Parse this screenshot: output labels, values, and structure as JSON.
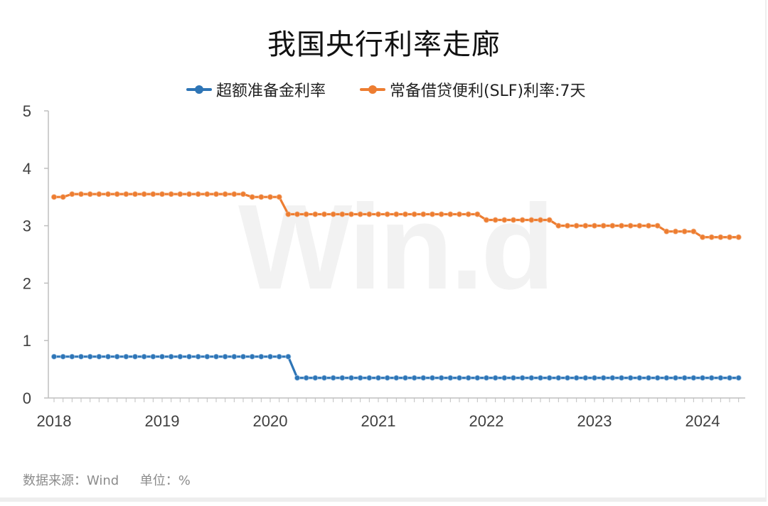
{
  "chart_data": {
    "type": "line",
    "title": "我国央行利率走廊",
    "xlabel": "",
    "ylabel": "",
    "x_ticks": [
      "2018",
      "2019",
      "2020",
      "2021",
      "2022",
      "2023",
      "2024"
    ],
    "y_ticks": [
      "0",
      "1",
      "2",
      "3",
      "4",
      "5"
    ],
    "ylim": [
      0,
      5
    ],
    "xlim": [
      "2018-01",
      "2024-05"
    ],
    "grid": false,
    "legend_position": "top",
    "series": [
      {
        "name": "超额准备金利率",
        "color": "#2e75b6",
        "x": [
          "2018-01",
          "2018-02",
          "2018-03",
          "2018-04",
          "2018-05",
          "2018-06",
          "2018-07",
          "2018-08",
          "2018-09",
          "2018-10",
          "2018-11",
          "2018-12",
          "2019-01",
          "2019-02",
          "2019-03",
          "2019-04",
          "2019-05",
          "2019-06",
          "2019-07",
          "2019-08",
          "2019-09",
          "2019-10",
          "2019-11",
          "2019-12",
          "2020-01",
          "2020-02",
          "2020-03",
          "2020-04",
          "2020-05",
          "2020-06",
          "2020-07",
          "2020-08",
          "2020-09",
          "2020-10",
          "2020-11",
          "2020-12",
          "2021-01",
          "2021-02",
          "2021-03",
          "2021-04",
          "2021-05",
          "2021-06",
          "2021-07",
          "2021-08",
          "2021-09",
          "2021-10",
          "2021-11",
          "2021-12",
          "2022-01",
          "2022-02",
          "2022-03",
          "2022-04",
          "2022-05",
          "2022-06",
          "2022-07",
          "2022-08",
          "2022-09",
          "2022-10",
          "2022-11",
          "2022-12",
          "2023-01",
          "2023-02",
          "2023-03",
          "2023-04",
          "2023-05",
          "2023-06",
          "2023-07",
          "2023-08",
          "2023-09",
          "2023-10",
          "2023-11",
          "2023-12",
          "2024-01",
          "2024-02",
          "2024-03",
          "2024-04",
          "2024-05"
        ],
        "values": [
          0.72,
          0.72,
          0.72,
          0.72,
          0.72,
          0.72,
          0.72,
          0.72,
          0.72,
          0.72,
          0.72,
          0.72,
          0.72,
          0.72,
          0.72,
          0.72,
          0.72,
          0.72,
          0.72,
          0.72,
          0.72,
          0.72,
          0.72,
          0.72,
          0.72,
          0.72,
          0.72,
          0.35,
          0.35,
          0.35,
          0.35,
          0.35,
          0.35,
          0.35,
          0.35,
          0.35,
          0.35,
          0.35,
          0.35,
          0.35,
          0.35,
          0.35,
          0.35,
          0.35,
          0.35,
          0.35,
          0.35,
          0.35,
          0.35,
          0.35,
          0.35,
          0.35,
          0.35,
          0.35,
          0.35,
          0.35,
          0.35,
          0.35,
          0.35,
          0.35,
          0.35,
          0.35,
          0.35,
          0.35,
          0.35,
          0.35,
          0.35,
          0.35,
          0.35,
          0.35,
          0.35,
          0.35,
          0.35,
          0.35,
          0.35,
          0.35,
          0.35
        ]
      },
      {
        "name": "常备借贷便利(SLF)利率:7天",
        "color": "#ed7d31",
        "x": [
          "2018-01",
          "2018-02",
          "2018-03",
          "2018-04",
          "2018-05",
          "2018-06",
          "2018-07",
          "2018-08",
          "2018-09",
          "2018-10",
          "2018-11",
          "2018-12",
          "2019-01",
          "2019-02",
          "2019-03",
          "2019-04",
          "2019-05",
          "2019-06",
          "2019-07",
          "2019-08",
          "2019-09",
          "2019-10",
          "2019-11",
          "2019-12",
          "2020-01",
          "2020-02",
          "2020-03",
          "2020-04",
          "2020-05",
          "2020-06",
          "2020-07",
          "2020-08",
          "2020-09",
          "2020-10",
          "2020-11",
          "2020-12",
          "2021-01",
          "2021-02",
          "2021-03",
          "2021-04",
          "2021-05",
          "2021-06",
          "2021-07",
          "2021-08",
          "2021-09",
          "2021-10",
          "2021-11",
          "2021-12",
          "2022-01",
          "2022-02",
          "2022-03",
          "2022-04",
          "2022-05",
          "2022-06",
          "2022-07",
          "2022-08",
          "2022-09",
          "2022-10",
          "2022-11",
          "2022-12",
          "2023-01",
          "2023-02",
          "2023-03",
          "2023-04",
          "2023-05",
          "2023-06",
          "2023-07",
          "2023-08",
          "2023-09",
          "2023-10",
          "2023-11",
          "2023-12",
          "2024-01",
          "2024-02",
          "2024-03",
          "2024-04",
          "2024-05"
        ],
        "values": [
          3.5,
          3.5,
          3.55,
          3.55,
          3.55,
          3.55,
          3.55,
          3.55,
          3.55,
          3.55,
          3.55,
          3.55,
          3.55,
          3.55,
          3.55,
          3.55,
          3.55,
          3.55,
          3.55,
          3.55,
          3.55,
          3.55,
          3.5,
          3.5,
          3.5,
          3.5,
          3.2,
          3.2,
          3.2,
          3.2,
          3.2,
          3.2,
          3.2,
          3.2,
          3.2,
          3.2,
          3.2,
          3.2,
          3.2,
          3.2,
          3.2,
          3.2,
          3.2,
          3.2,
          3.2,
          3.2,
          3.2,
          3.2,
          3.1,
          3.1,
          3.1,
          3.1,
          3.1,
          3.1,
          3.1,
          3.1,
          3.0,
          3.0,
          3.0,
          3.0,
          3.0,
          3.0,
          3.0,
          3.0,
          3.0,
          3.0,
          3.0,
          3.0,
          2.9,
          2.9,
          2.9,
          2.9,
          2.8,
          2.8,
          2.8,
          2.8,
          2.8
        ]
      }
    ]
  },
  "legend": {
    "items": [
      {
        "label": "超额准备金利率",
        "color": "#2e75b6"
      },
      {
        "label": "常备借贷便利(SLF)利率:7天",
        "color": "#ed7d31"
      }
    ]
  },
  "footer": {
    "source": "数据来源：Wind",
    "unit": "单位：%"
  },
  "watermark": "Wind"
}
